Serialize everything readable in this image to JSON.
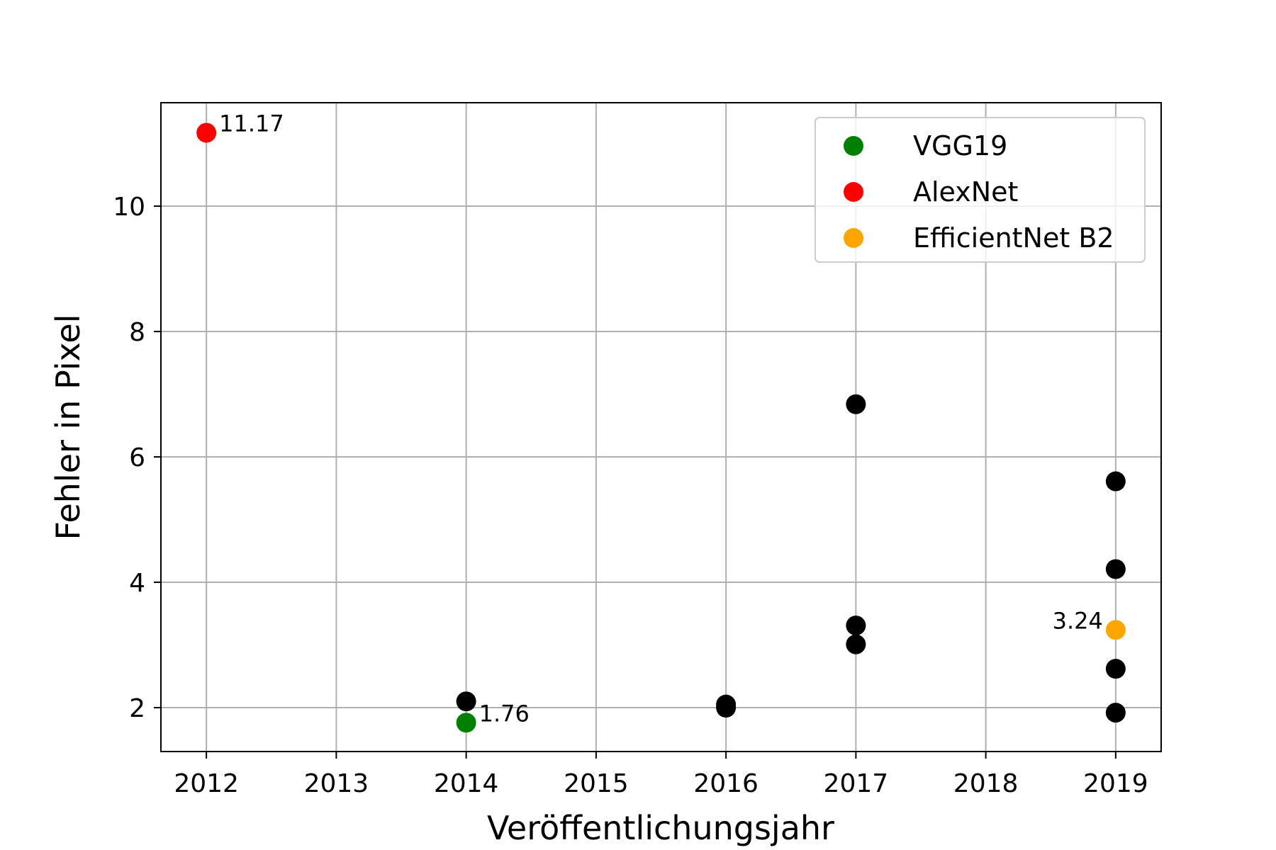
{
  "chart_data": {
    "type": "scatter",
    "xlabel": "Veröffentlichungsjahr",
    "ylabel": "Fehler in Pixel",
    "xlim": [
      2011.65,
      2019.35
    ],
    "ylim": [
      1.3,
      11.65
    ],
    "xticks": [
      2012,
      2013,
      2014,
      2015,
      2016,
      2017,
      2018,
      2019
    ],
    "yticks": [
      2,
      4,
      6,
      8,
      10
    ],
    "grid": true,
    "legend_position": "top-right",
    "series": [
      {
        "name": "",
        "color": "#000000",
        "points": [
          {
            "x": 2014,
            "y": 2.1
          },
          {
            "x": 2016,
            "y": 2.05
          },
          {
            "x": 2016,
            "y": 2.0
          },
          {
            "x": 2017,
            "y": 6.84
          },
          {
            "x": 2017,
            "y": 3.31
          },
          {
            "x": 2017,
            "y": 3.01
          },
          {
            "x": 2019,
            "y": 5.61
          },
          {
            "x": 2019,
            "y": 4.21
          },
          {
            "x": 2019,
            "y": 2.62
          },
          {
            "x": 2019,
            "y": 1.92
          }
        ]
      },
      {
        "name": "VGG19",
        "color": "#008000",
        "points": [
          {
            "x": 2014,
            "y": 1.76
          }
        ],
        "label": "1.76"
      },
      {
        "name": "AlexNet",
        "color": "#ff0000",
        "points": [
          {
            "x": 2012,
            "y": 11.17
          }
        ],
        "label": "11.17"
      },
      {
        "name": "EfficientNet B2",
        "color": "#ffa500",
        "points": [
          {
            "x": 2019,
            "y": 3.24
          }
        ],
        "label": "3.24"
      }
    ]
  }
}
